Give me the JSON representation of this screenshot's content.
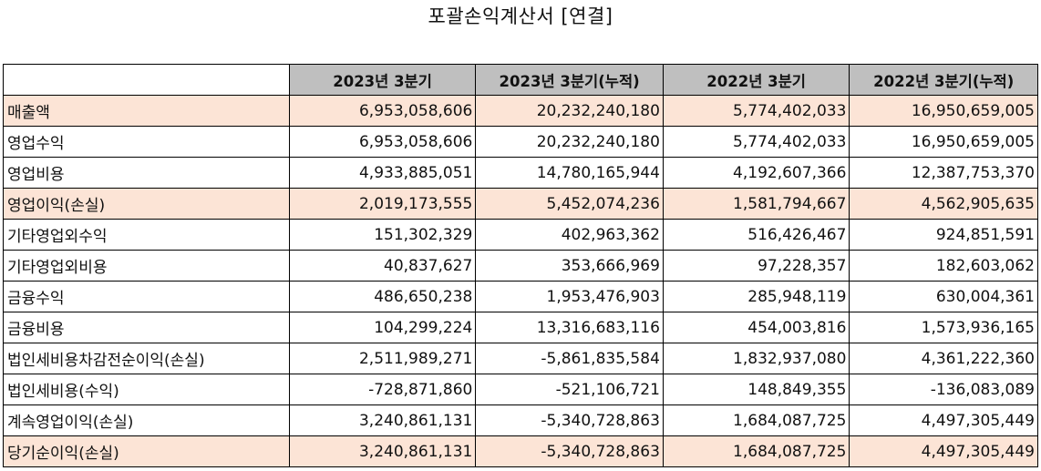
{
  "title": "포괄손익계산서 [연결]",
  "columns": [
    "",
    "2023년 3분기",
    "2023년 3분기(누적)",
    "2022년 3분기",
    "2022년 3분기(누적)"
  ],
  "rows": [
    {
      "label": "매출액",
      "values": [
        "6,953,058,606",
        "20,232,240,180",
        "5,774,402,033",
        "16,950,659,005"
      ],
      "highlight": true
    },
    {
      "label": "영업수익",
      "values": [
        "6,953,058,606",
        "20,232,240,180",
        "5,774,402,033",
        "16,950,659,005"
      ],
      "highlight": false
    },
    {
      "label": "영업비용",
      "values": [
        "4,933,885,051",
        "14,780,165,944",
        "4,192,607,366",
        "12,387,753,370"
      ],
      "highlight": false
    },
    {
      "label": "영업이익(손실)",
      "values": [
        "2,019,173,555",
        "5,452,074,236",
        "1,581,794,667",
        "4,562,905,635"
      ],
      "highlight": true
    },
    {
      "label": "기타영업외수익",
      "values": [
        "151,302,329",
        "402,963,362",
        "516,426,467",
        "924,851,591"
      ],
      "highlight": false
    },
    {
      "label": "기타영업외비용",
      "values": [
        "40,837,627",
        "353,666,969",
        "97,228,357",
        "182,603,062"
      ],
      "highlight": false
    },
    {
      "label": "금융수익",
      "values": [
        "486,650,238",
        "1,953,476,903",
        "285,948,119",
        "630,004,361"
      ],
      "highlight": false
    },
    {
      "label": "금융비용",
      "values": [
        "104,299,224",
        "13,316,683,116",
        "454,003,816",
        "1,573,936,165"
      ],
      "highlight": false
    },
    {
      "label": "법인세비용차감전순이익(손실)",
      "values": [
        "2,511,989,271",
        "-5,861,835,584",
        "1,832,937,080",
        "4,361,222,360"
      ],
      "highlight": false
    },
    {
      "label": "법인세비용(수익)",
      "values": [
        "-728,871,860",
        "-521,106,721",
        "148,849,355",
        "-136,083,089"
      ],
      "highlight": false
    },
    {
      "label": "계속영업이익(손실)",
      "values": [
        "3,240,861,131",
        "-5,340,728,863",
        "1,684,087,725",
        "4,497,305,449"
      ],
      "highlight": false
    },
    {
      "label": "당기순이익(손실)",
      "values": [
        "3,240,861,131",
        "-5,340,728,863",
        "1,684,087,725",
        "4,497,305,449"
      ],
      "highlight": true
    }
  ],
  "colors": {
    "header_bg": "#bfbfbf",
    "highlight_bg": "#fce4d6",
    "border": "#000000"
  }
}
